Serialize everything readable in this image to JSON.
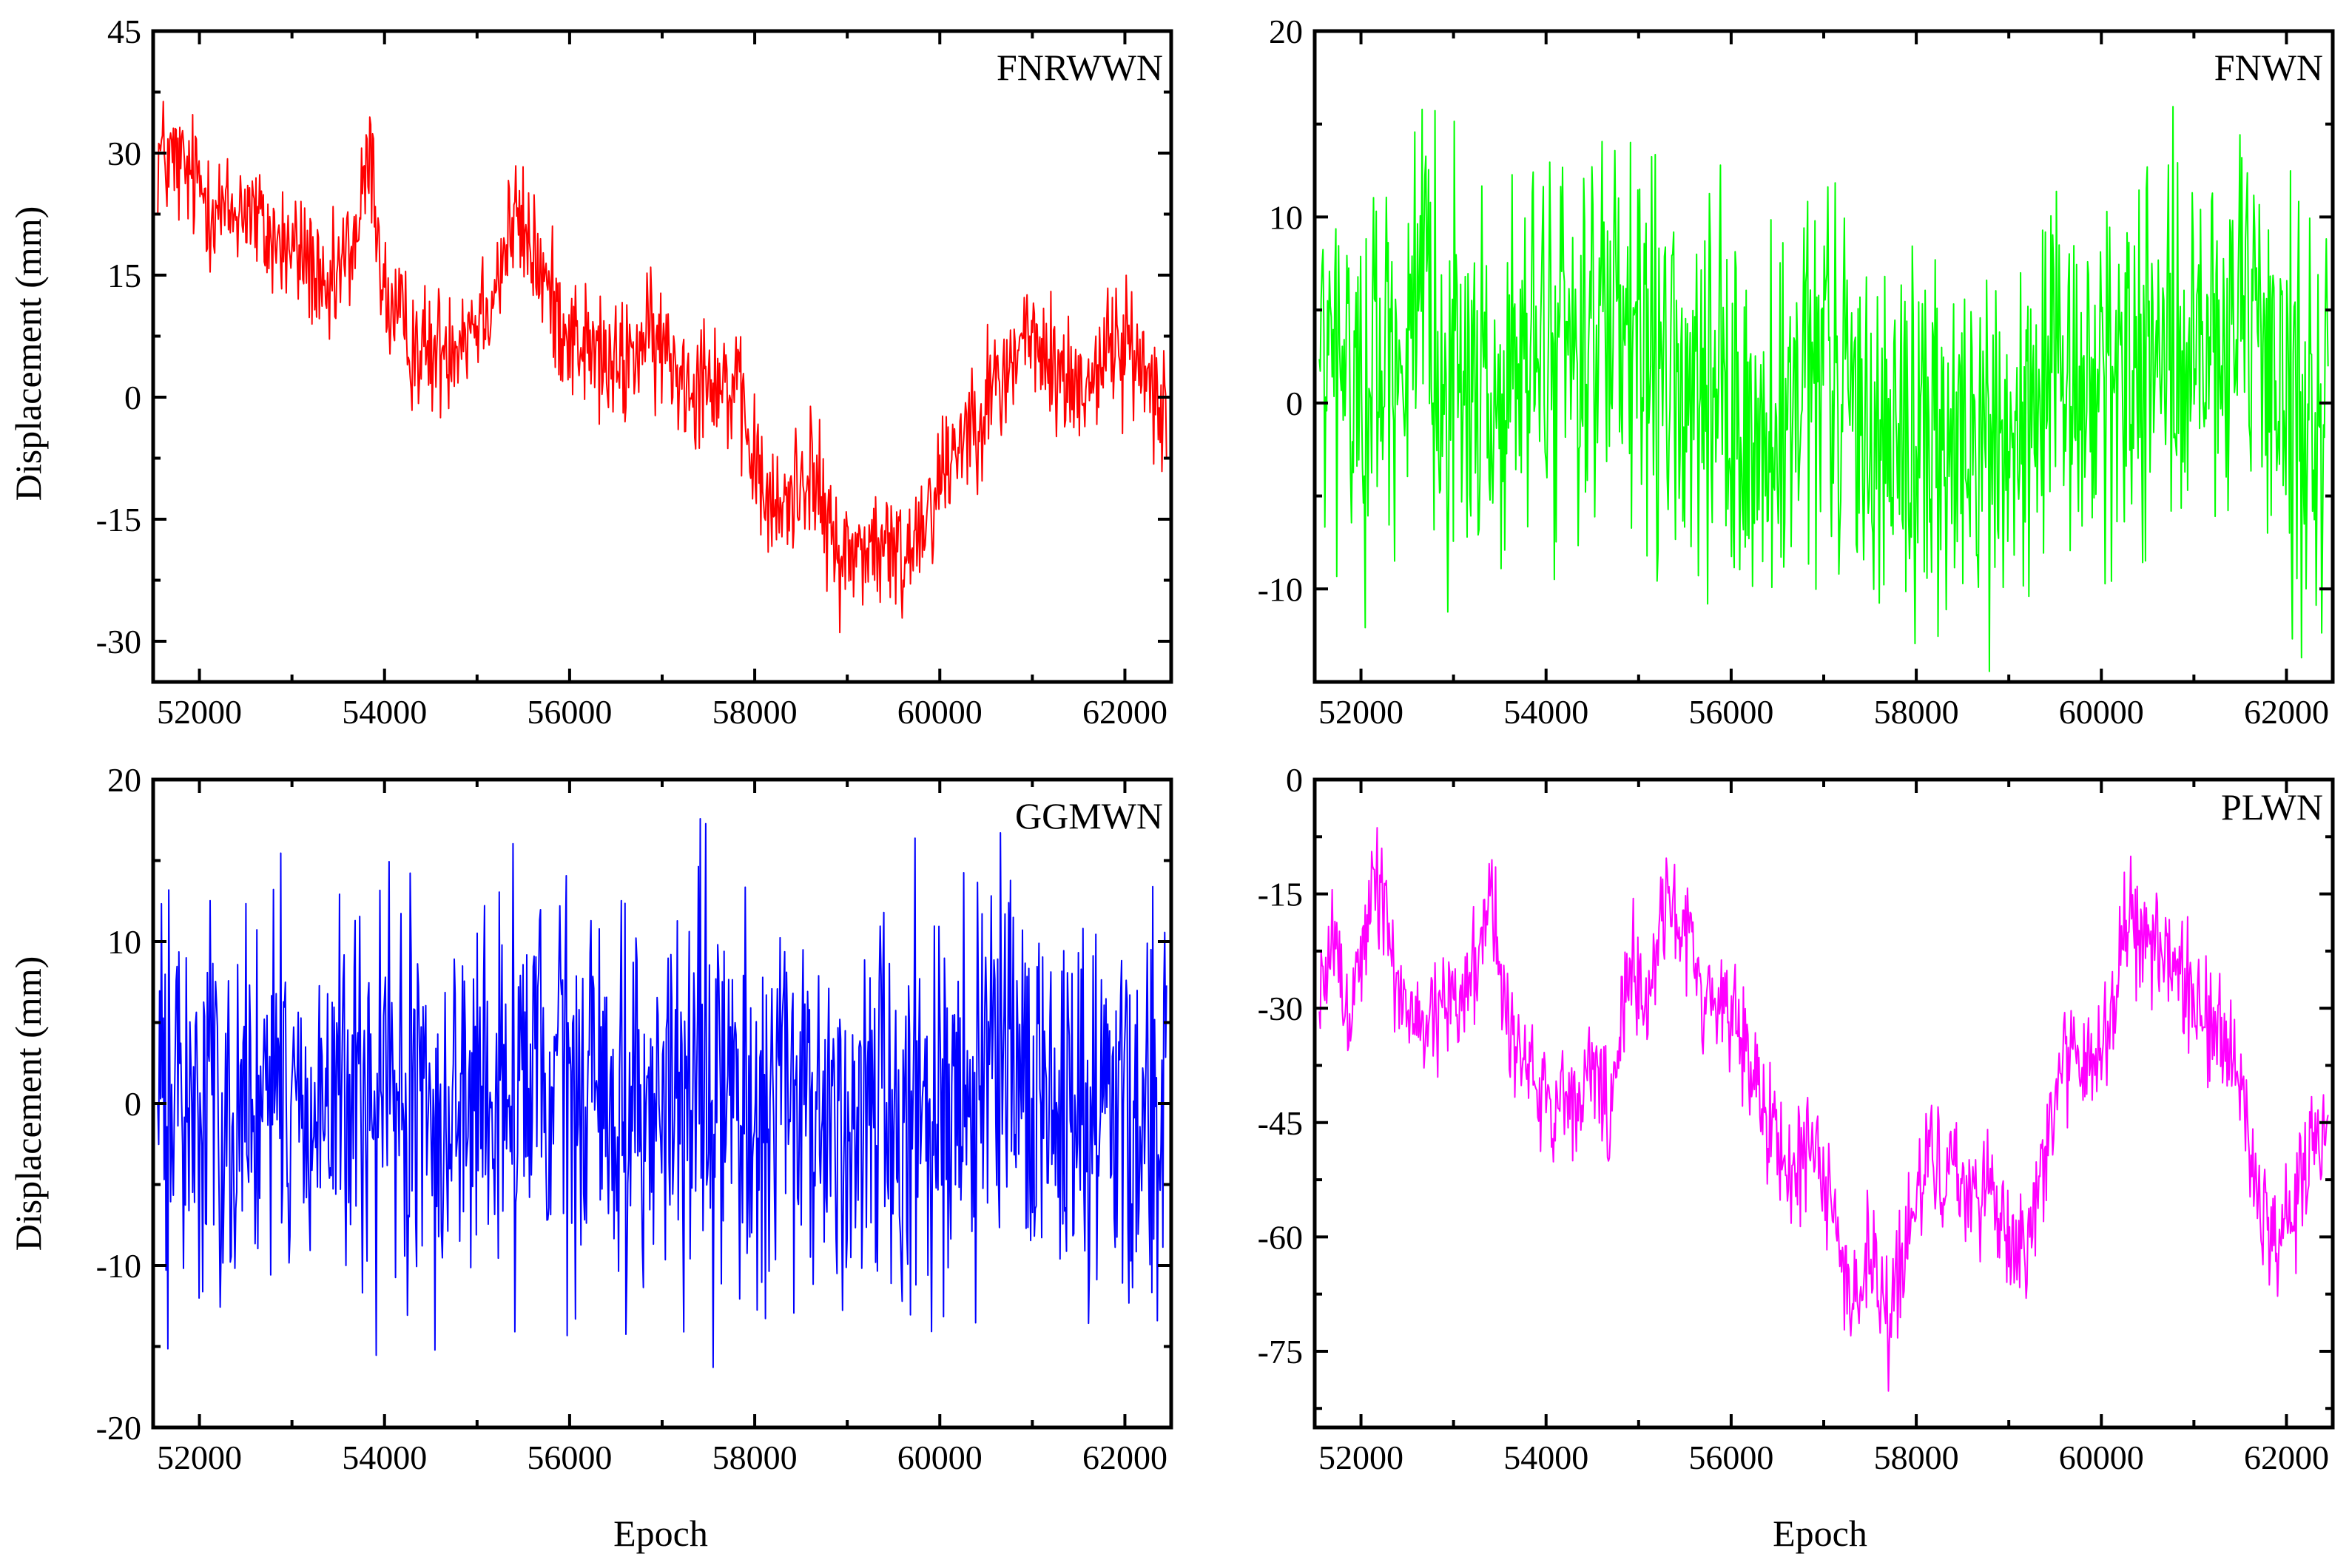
{
  "chart_data": [
    {
      "type": "line",
      "title": "FNRWWN",
      "xlabel": "",
      "ylabel": "Displacement (mm)",
      "xlim": [
        51500,
        62500
      ],
      "ylim": [
        -35,
        45
      ],
      "xticks": [
        52000,
        54000,
        56000,
        58000,
        60000,
        62000
      ],
      "yticks": [
        -30,
        -15,
        0,
        15,
        30,
        45
      ],
      "color": "#ff0000",
      "series": [
        {
          "name": "FNRWWN",
          "x": [
            51550,
            51800,
            52000,
            52300,
            52500,
            52700,
            53000,
            53200,
            53350,
            53500,
            53700,
            53850,
            54000,
            54200,
            54500,
            54700,
            55000,
            55200,
            55400,
            55600,
            55800,
            56000,
            56300,
            56500,
            56800,
            57000,
            57300,
            57500,
            57800,
            58000,
            58200,
            58400,
            58600,
            58800,
            59000,
            59200,
            59400,
            59600,
            59800,
            60000,
            60200,
            60500,
            60700,
            60900,
            61100,
            61300,
            61500,
            61700,
            61900,
            62100,
            62300,
            62450
          ],
          "y": [
            30,
            28,
            26,
            22,
            24,
            20,
            18,
            17,
            10,
            15,
            20,
            30,
            12,
            8,
            5,
            7,
            10,
            14,
            22,
            18,
            12,
            8,
            5,
            3,
            7,
            6,
            2,
            4,
            0,
            -8,
            -15,
            -12,
            -8,
            -17,
            -20,
            -18,
            -19,
            -20,
            -15,
            -10,
            -5,
            0,
            2,
            8,
            5,
            3,
            1,
            4,
            7,
            5,
            2,
            0
          ],
          "amplitude": 4
        }
      ]
    },
    {
      "type": "line",
      "title": "FNWN",
      "xlabel": "",
      "ylabel": "",
      "xlim": [
        51500,
        62500
      ],
      "ylim": [
        -15,
        20
      ],
      "xticks": [
        52000,
        54000,
        56000,
        58000,
        60000,
        62000
      ],
      "yticks": [
        -10,
        0,
        10,
        20
      ],
      "color": "#00ff00",
      "series": [
        {
          "name": "FNWN",
          "x": [
            51550,
            52000,
            52500,
            53000,
            53500,
            54000,
            54500,
            55000,
            55500,
            56000,
            56500,
            57000,
            57500,
            58000,
            58500,
            59000,
            59500,
            60000,
            60500,
            61000,
            61500,
            62000,
            62450
          ],
          "y": [
            2,
            1,
            4,
            2,
            0,
            3,
            4,
            2,
            0,
            -1,
            -3,
            2,
            -1,
            -2,
            -3,
            -2,
            0,
            1,
            3,
            2,
            3,
            1,
            -1
          ],
          "amplitude": 5
        }
      ]
    },
    {
      "type": "line",
      "title": "GGMWN",
      "xlabel": "Epoch",
      "ylabel": "Displacement (mm)",
      "xlim": [
        51500,
        62500
      ],
      "ylim": [
        -20,
        20
      ],
      "xticks": [
        52000,
        54000,
        56000,
        58000,
        60000,
        62000
      ],
      "yticks": [
        -20,
        -10,
        0,
        10,
        20
      ],
      "color": "#0000ff",
      "series": [
        {
          "name": "GGMWN",
          "x": [
            51550,
            52500,
            53500,
            54500,
            55500,
            56500,
            57500,
            58500,
            59500,
            60500,
            61500,
            62450
          ],
          "y": [
            0,
            0,
            0,
            -1,
            1,
            0,
            0,
            -1,
            0,
            1,
            0,
            1
          ],
          "amplitude": 6
        }
      ]
    },
    {
      "type": "line",
      "title": "PLWN",
      "xlabel": "Epoch",
      "ylabel": "",
      "xlim": [
        51500,
        62500
      ],
      "ylim": [
        -85,
        0
      ],
      "xticks": [
        52000,
        54000,
        56000,
        58000,
        60000,
        62000
      ],
      "yticks": [
        -75,
        -60,
        -45,
        -30,
        -15,
        0
      ],
      "color": "#ff00ff",
      "series": [
        {
          "name": "PLWN",
          "x": [
            51550,
            51700,
            51900,
            52150,
            52400,
            52700,
            53000,
            53200,
            53400,
            53600,
            53800,
            54000,
            54200,
            54500,
            54700,
            54900,
            55100,
            55300,
            55500,
            55700,
            56000,
            56300,
            56600,
            56900,
            57100,
            57300,
            57500,
            57700,
            57900,
            58200,
            58500,
            58800,
            59000,
            59200,
            59400,
            59600,
            59900,
            60100,
            60300,
            60500,
            60700,
            60900,
            61200,
            61500,
            61700,
            61900,
            62100,
            62300,
            62450
          ],
          "y": [
            -30,
            -22,
            -30,
            -12,
            -28,
            -32,
            -30,
            -25,
            -15,
            -32,
            -38,
            -42,
            -45,
            -38,
            -45,
            -25,
            -28,
            -15,
            -20,
            -28,
            -30,
            -40,
            -52,
            -48,
            -55,
            -70,
            -62,
            -72,
            -60,
            -48,
            -55,
            -52,
            -62,
            -60,
            -48,
            -35,
            -40,
            -30,
            -18,
            -25,
            -20,
            -28,
            -32,
            -40,
            -55,
            -62,
            -55,
            -48,
            -42
          ],
          "amplitude": 4
        }
      ]
    }
  ]
}
